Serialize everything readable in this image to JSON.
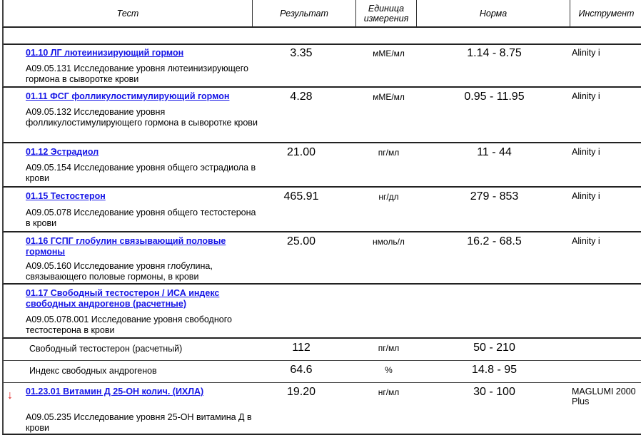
{
  "header": {
    "test": "Тест",
    "result": "Результат",
    "unit": "Единица измерения",
    "norm": "Норма",
    "instrument": "Инструмент"
  },
  "colors": {
    "link": "#1515e6",
    "low_flag": "#e02020"
  },
  "rows": [
    {
      "title": "01.10 ЛГ лютеинизирующий гормон",
      "desc": "А09.05.131 Исследование уровня лютеинизирующего гормона в сыворотке крови",
      "result": "3.35",
      "unit": "мМЕ/мл",
      "norm": "1.14 - 8.75",
      "instrument": "Alinity i"
    },
    {
      "title": "01.11 ФСГ фолликулостимулирующий гормон",
      "desc": "А09.05.132 Исследование уровня фолликулостимулирующего гормона в сыворотке крови",
      "result": "4.28",
      "unit": "мМЕ/мл",
      "norm": "0.95 - 11.95",
      "instrument": "Alinity i"
    },
    {
      "title": "01.12 Эстрадиол",
      "desc": "А09.05.154 Исследование уровня общего эстрадиола в крови",
      "result": "21.00",
      "unit": "пг/мл",
      "norm": "11 - 44",
      "instrument": "Alinity i"
    },
    {
      "title": "01.15 Тестостерон",
      "desc": "А09.05.078 Исследование уровня общего тестостерона в крови",
      "result": "465.91",
      "unit": "нг/дл",
      "norm": "279 - 853",
      "instrument": "Alinity i"
    },
    {
      "title": "01.16 ГСПГ глобулин связывающий половые гормоны",
      "desc": "А09.05.160 Исследование уровня глобулина, связывающего половые гормоны, в крови",
      "result": "25.00",
      "unit": "нмоль/л",
      "norm": "16.2 - 68.5",
      "instrument": "Alinity i"
    },
    {
      "title": "01.17 Свободный тестостерон / ИСА индекс свободных андрогенов (расчетные)",
      "desc": "А09.05.078.001 Исследование уровня свободного тестостерона в крови",
      "result": "",
      "unit": "",
      "norm": "",
      "instrument": ""
    },
    {
      "sub": true,
      "title": "Свободный тестостерон (расчетный)",
      "result": "112",
      "unit": "пг/мл",
      "norm": "50 - 210",
      "instrument": ""
    },
    {
      "sub": true,
      "title": "Индекс свободных андрогенов",
      "result": "64.6",
      "unit": "%",
      "norm": "14.8 - 95",
      "instrument": ""
    },
    {
      "title": "01.23.01 Витамин Д 25-ОН колич. (ИХЛА)",
      "desc": "А09.05.235 Исследование уровня 25-ОН витамина Д в крови",
      "result": "19.20",
      "unit": "нг/мл",
      "norm": "30 - 100",
      "instrument": "MAGLUMI 2000 Plus",
      "flag": "↓"
    }
  ]
}
